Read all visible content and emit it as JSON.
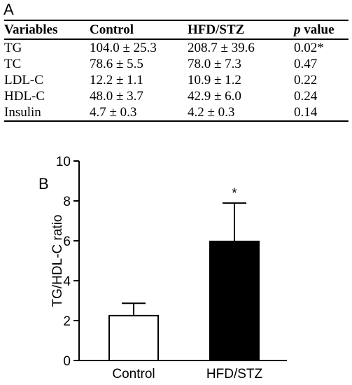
{
  "panel_a": {
    "letter": "A",
    "headers": {
      "variables": "Variables",
      "control": "Control",
      "hfd": "HFD/STZ",
      "p_italic": "p",
      "p_rest": " value"
    },
    "rows": [
      {
        "variable": "TG",
        "control": "104.0 ± 25.3",
        "hfd": "208.7 ± 39.6",
        "p": "0.02*"
      },
      {
        "variable": "TC",
        "control": "78.6 ± 5.5",
        "hfd": "78.0 ± 7.3",
        "p": "0.47"
      },
      {
        "variable": "LDL-C",
        "control": "12.2 ± 1.1",
        "hfd": "10.9 ± 1.2",
        "p": "0.22"
      },
      {
        "variable": "HDL-C",
        "control": "48.0 ± 3.7",
        "hfd": "42.9 ± 6.0",
        "p": "0.24"
      },
      {
        "variable": "Insulin",
        "control": "4.7 ± 0.3",
        "hfd": "4.2 ± 0.3",
        "p": "0.14"
      }
    ]
  },
  "panel_b": {
    "letter": "B"
  },
  "chart_data": {
    "type": "bar",
    "categories": [
      "Control",
      "HFD/STZ"
    ],
    "values": [
      2.25,
      5.97
    ],
    "errors": [
      0.62,
      1.92
    ],
    "bar_colors": [
      "#ffffff",
      "#000000"
    ],
    "significance": [
      "",
      "*"
    ],
    "ylabel": "TG/HDL-C ratio",
    "ylim": [
      0,
      10
    ],
    "yticks": [
      0,
      2,
      4,
      6,
      8,
      10
    ],
    "grid": false
  }
}
